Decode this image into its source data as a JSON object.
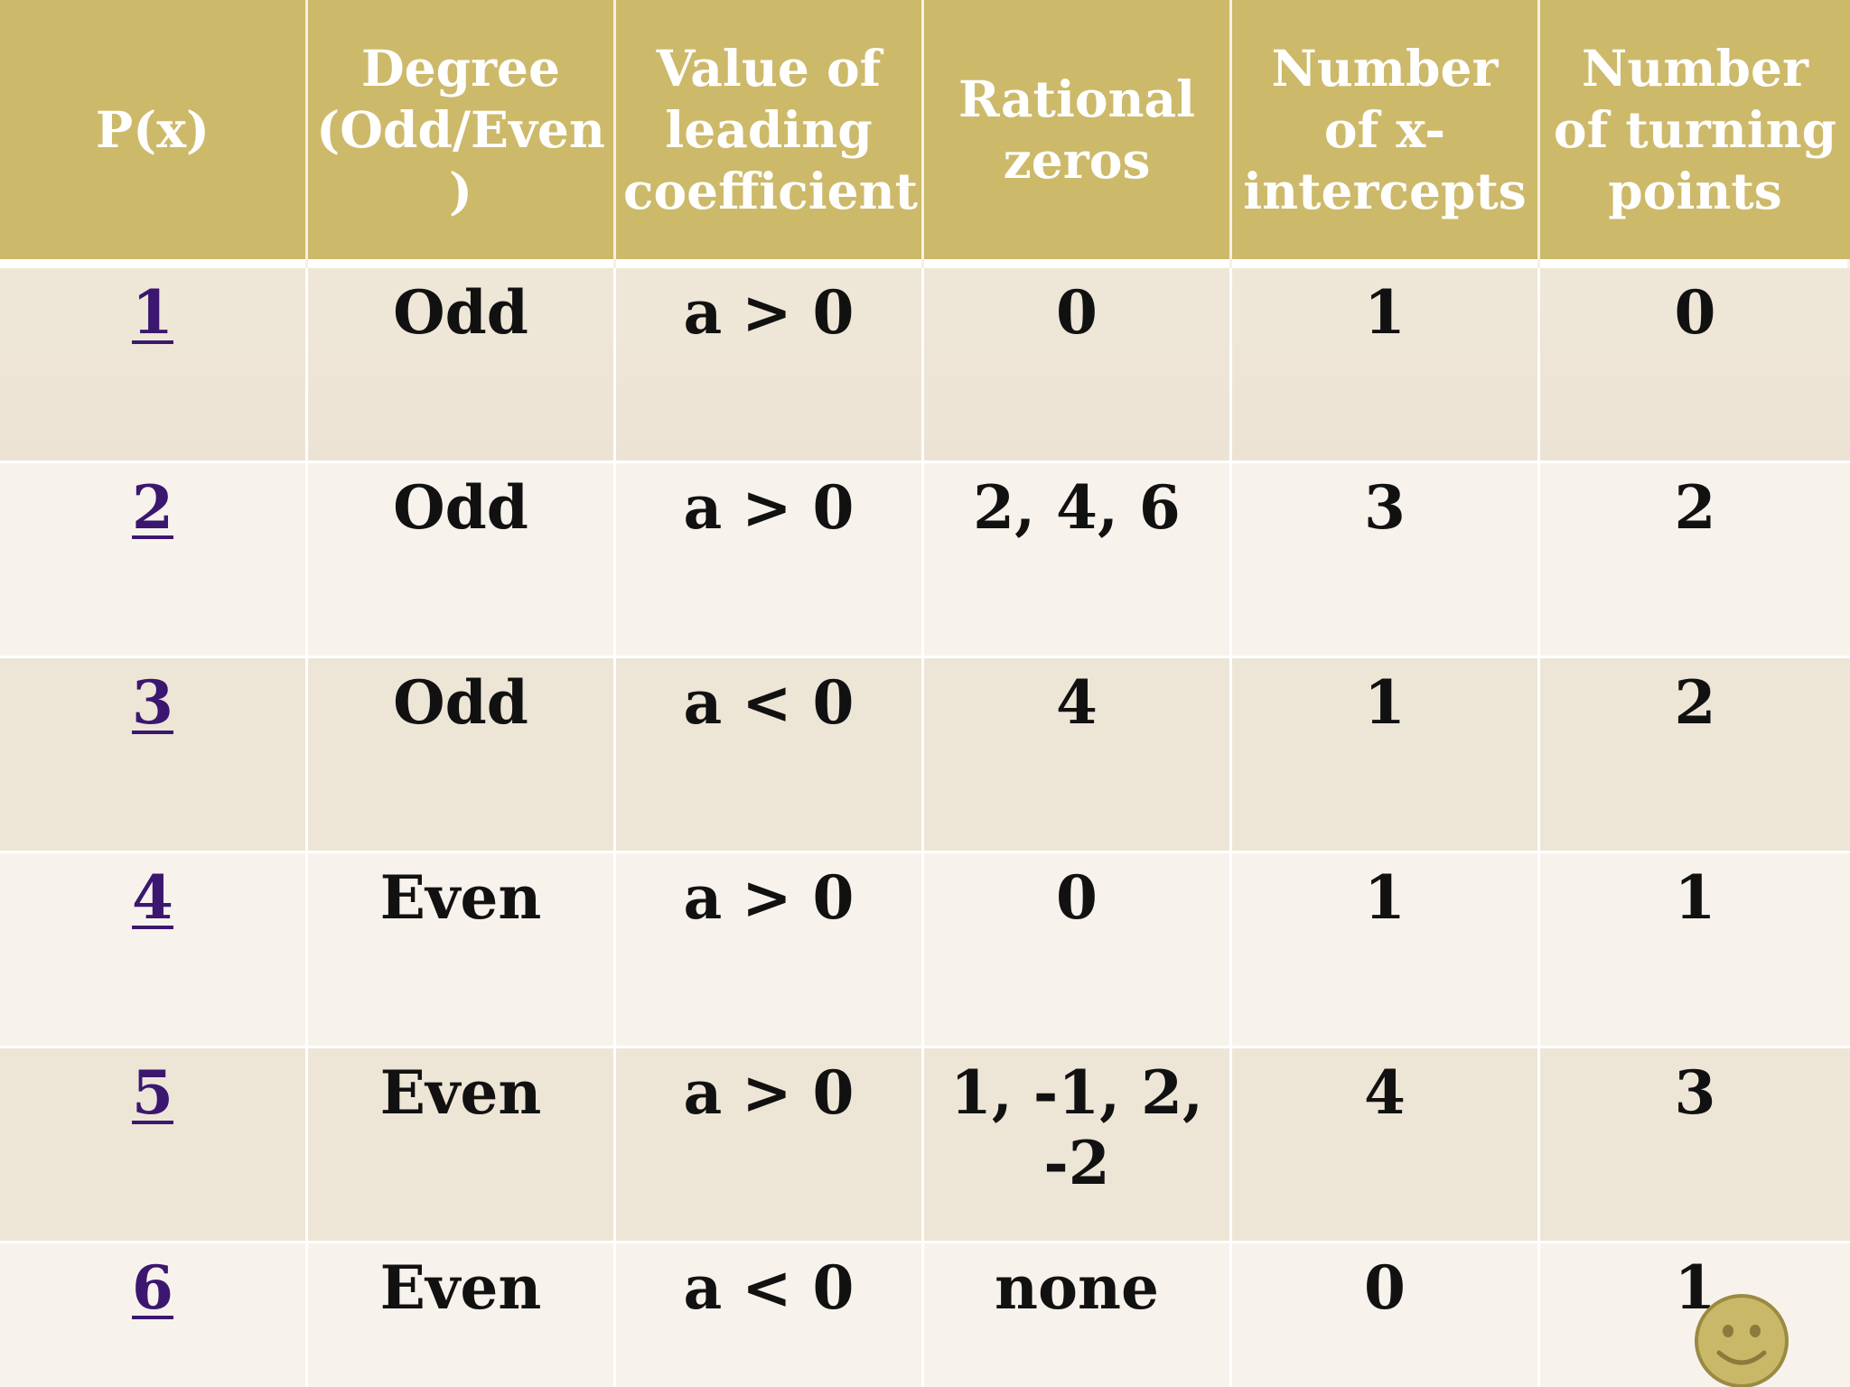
{
  "table": {
    "headers": [
      "P(x)",
      "Degree (Odd/Even )",
      "Value of leading coefficient",
      "Rational zeros",
      "Number of x-intercepts",
      "Number of turning points"
    ],
    "rows": [
      {
        "px": "1",
        "degree": "Odd",
        "lead_a": "a",
        "lead_rel": "> 0",
        "zeros": "0",
        "intercepts": "1",
        "turning": "0"
      },
      {
        "px": "2",
        "degree": "Odd",
        "lead_a": "a",
        "lead_rel": "> 0",
        "zeros": "2, 4, 6",
        "intercepts": "3",
        "turning": "2"
      },
      {
        "px": "3",
        "degree": "Odd",
        "lead_a": "a",
        "lead_rel": "<  0",
        "zeros": "4",
        "intercepts": "1",
        "turning": "2"
      },
      {
        "px": "4",
        "degree": "Even",
        "lead_a": "a",
        "lead_rel": "> 0",
        "zeros": "0",
        "intercepts": "1",
        "turning": "1"
      },
      {
        "px": "5",
        "degree": "Even",
        "lead_a": "a",
        "lead_rel": "> 0",
        "zeros": "1, -1, 2, -2",
        "intercepts": "4",
        "turning": "3"
      },
      {
        "px": "6",
        "degree": "Even",
        "lead_a": "a",
        "lead_rel": "<  0",
        "zeros": "none",
        "intercepts": "0",
        "turning": "1"
      }
    ]
  },
  "icons": {
    "smiley": "smiley-face-icon"
  },
  "colors": {
    "header_bg": "#cdb96a",
    "header_text": "#ffffff",
    "row_odd_bg": "#ede6d6",
    "row_even_bg": "#f7f3ec",
    "link": "#3b1770"
  }
}
